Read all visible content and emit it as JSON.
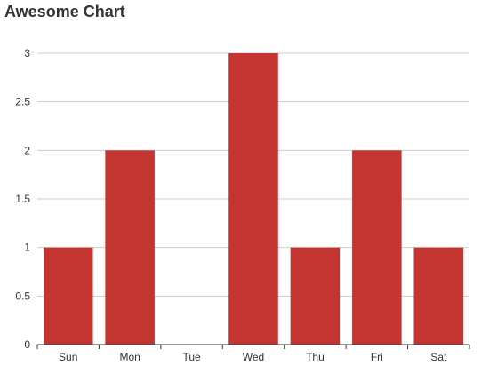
{
  "chart_data": {
    "type": "bar",
    "title": "Awesome Chart",
    "categories": [
      "Sun",
      "Mon",
      "Tue",
      "Wed",
      "Thu",
      "Fri",
      "Sat"
    ],
    "values": [
      1,
      2,
      0,
      3,
      1,
      2,
      1
    ],
    "ylim": [
      0,
      3
    ],
    "yticks": [
      "0",
      "0.5",
      "1",
      "1.5",
      "2",
      "2.5",
      "3"
    ],
    "xlabel": "",
    "ylabel": "",
    "grid": true,
    "bar_color": "#c23531",
    "grid_color": "#cccccc",
    "axis_color": "#333333"
  }
}
